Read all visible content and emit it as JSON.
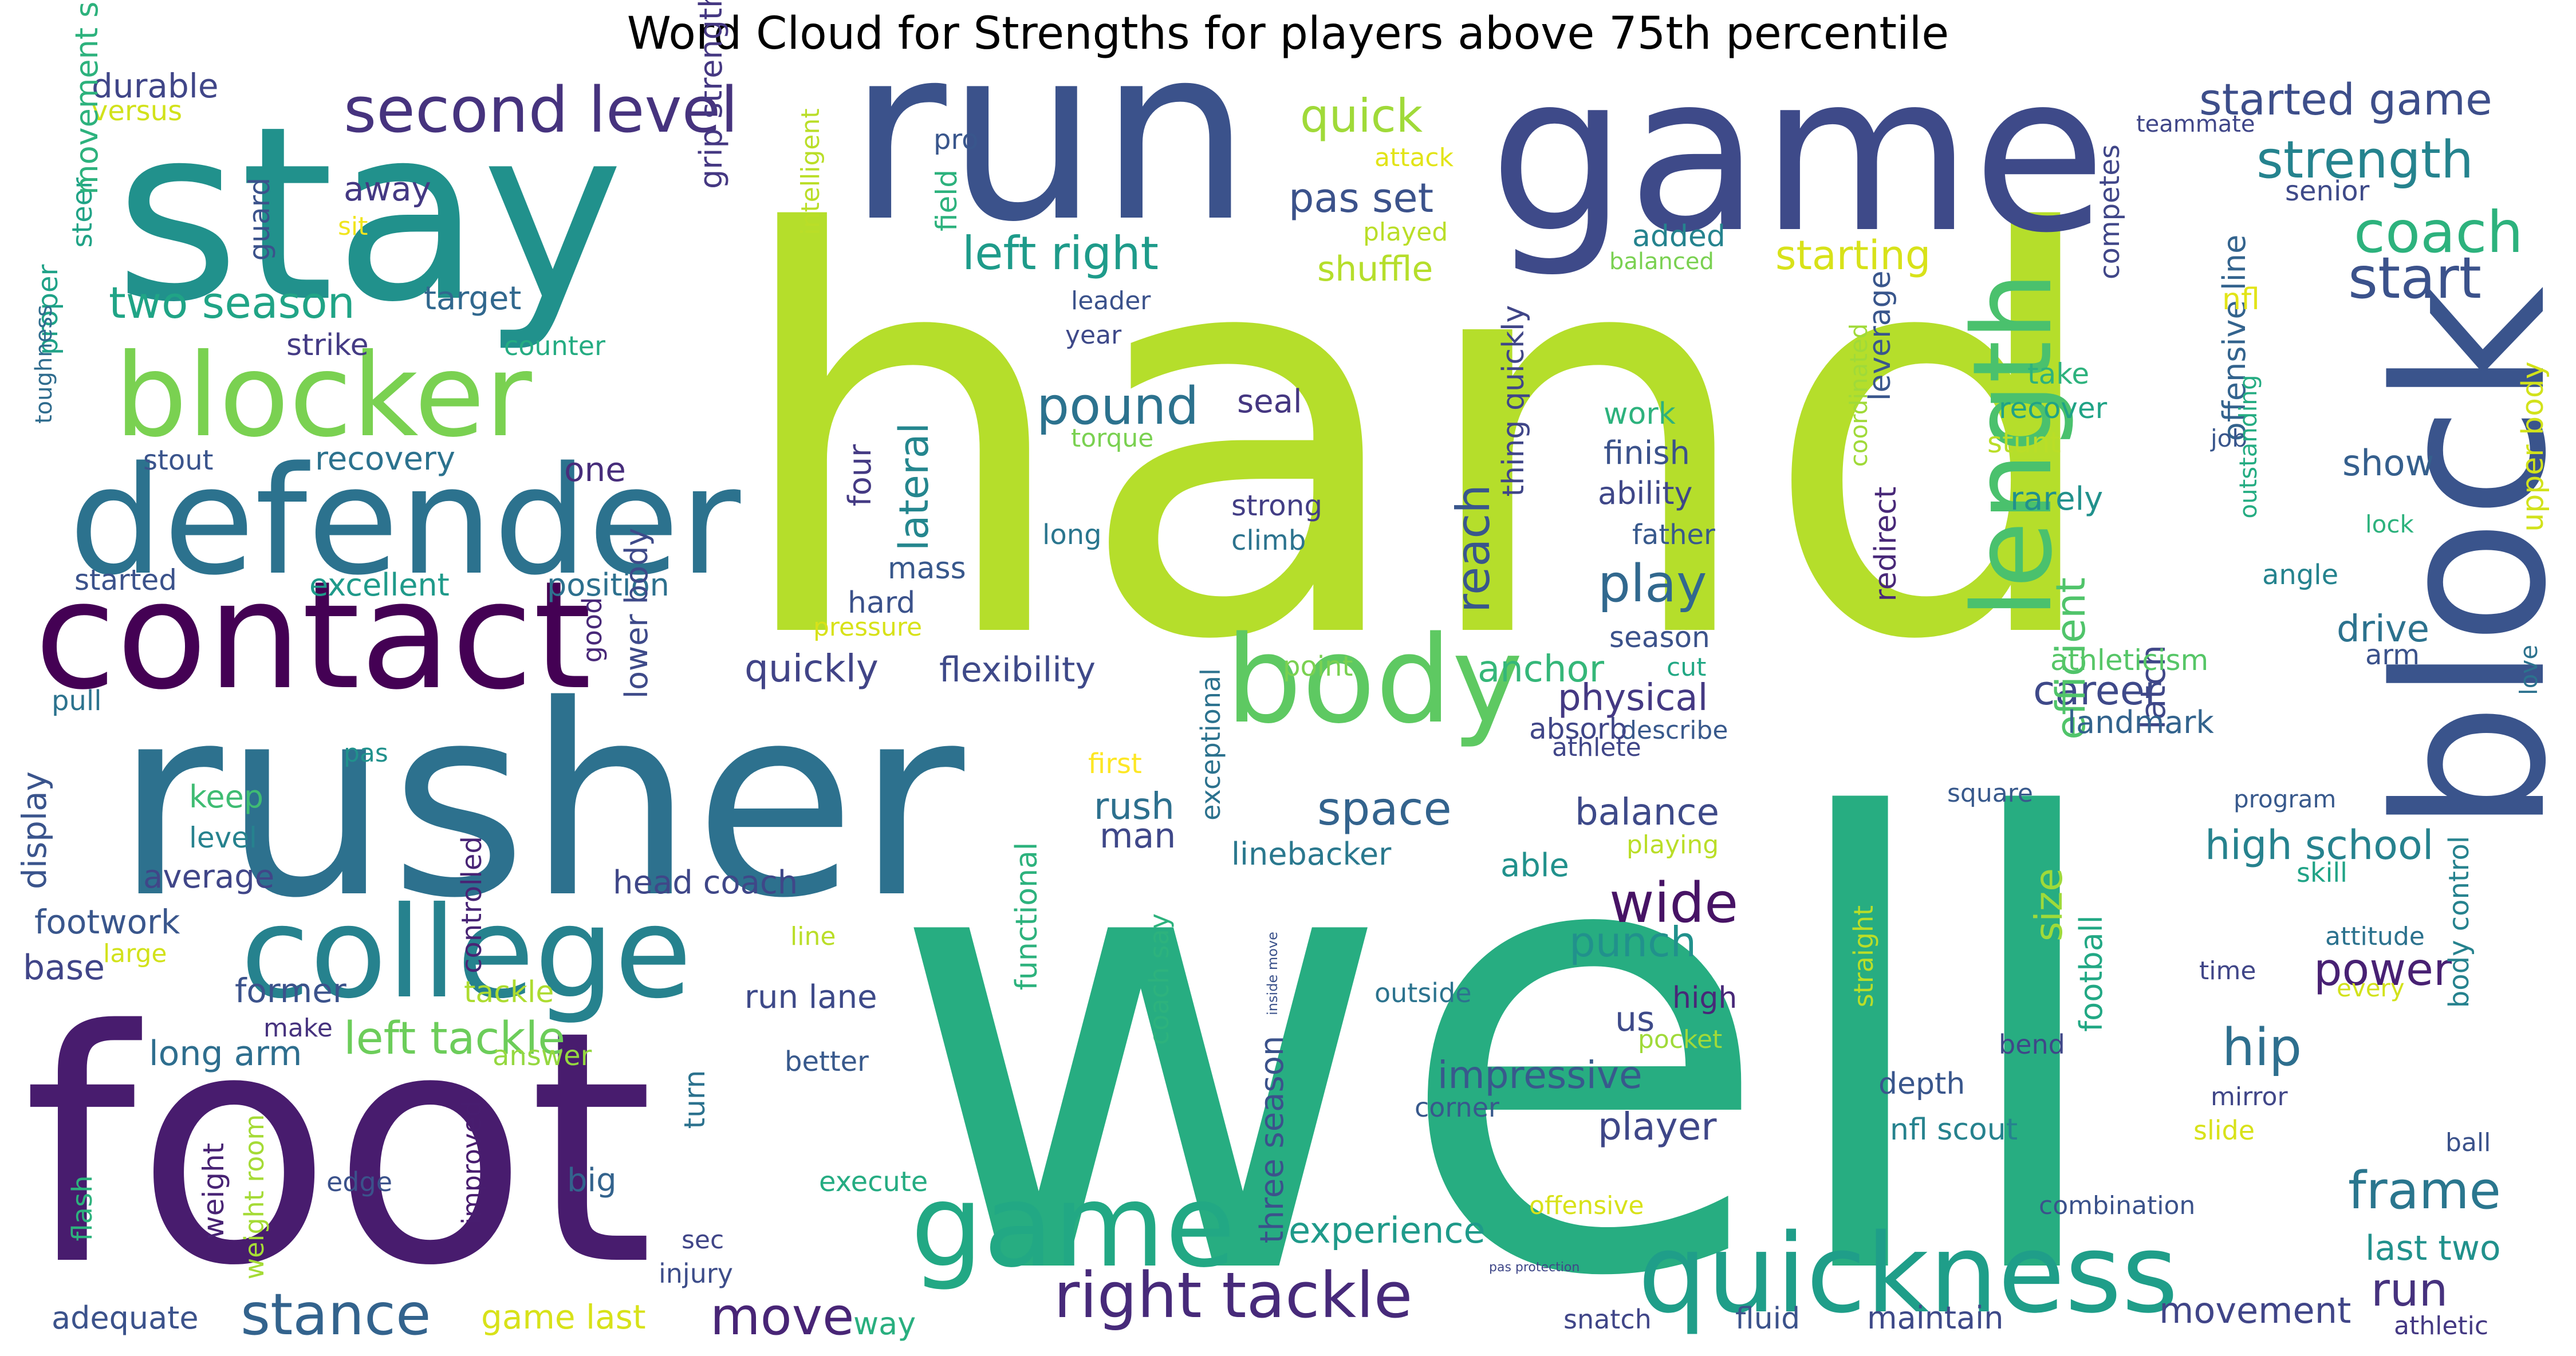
{
  "title": "Word Cloud for Strengths for players above 75th percentile",
  "words": [
    {
      "text": "hand",
      "color": "#b5de2b"
    },
    {
      "text": "well",
      "color": "#27ad81"
    },
    {
      "text": "foot",
      "color": "#481c6e"
    },
    {
      "text": "rusher",
      "color": "#2d718e"
    },
    {
      "text": "run",
      "color": "#3b528b"
    },
    {
      "text": "game",
      "color": "#3e4a89"
    },
    {
      "text": "stay",
      "color": "#21918c"
    },
    {
      "text": "block",
      "color": "#3a548c"
    },
    {
      "text": "defender",
      "color": "#2c728e"
    },
    {
      "text": "contact",
      "color": "#440154"
    },
    {
      "text": "college",
      "color": "#26828e"
    },
    {
      "text": "blocker",
      "color": "#7ad151"
    },
    {
      "text": "quickness",
      "color": "#1f9e89"
    },
    {
      "text": "body",
      "color": "#5ec962"
    },
    {
      "text": "length",
      "color": "#4ac16d"
    },
    {
      "text": "game",
      "color": "#22a884"
    },
    {
      "text": "second level",
      "color": "#46337e"
    },
    {
      "text": "right tackle",
      "color": "#472a7a"
    },
    {
      "text": "left right",
      "color": "#1e9b8a"
    },
    {
      "text": "strength",
      "color": "#25838e"
    },
    {
      "text": "coach",
      "color": "#2db27d"
    },
    {
      "text": "started game",
      "color": "#3d4e8a"
    },
    {
      "text": "stance",
      "color": "#33638d"
    },
    {
      "text": "start",
      "color": "#3b528b"
    },
    {
      "text": "pound",
      "color": "#2c728e"
    },
    {
      "text": "left tackle",
      "color": "#6ccd5a"
    },
    {
      "text": "wide",
      "color": "#471365"
    },
    {
      "text": "frame",
      "color": "#2a768e"
    },
    {
      "text": "quick",
      "color": "#a0da39"
    },
    {
      "text": "two season",
      "color": "#20a486"
    },
    {
      "text": "move",
      "color": "#482576"
    },
    {
      "text": "space",
      "color": "#33638d"
    },
    {
      "text": "hip",
      "color": "#2e6f8e"
    },
    {
      "text": "play",
      "color": "#31688e"
    },
    {
      "text": "reach",
      "color": "#39568c"
    },
    {
      "text": "pas set",
      "color": "#3b528b"
    },
    {
      "text": "shuffle",
      "color": "#b5de2b"
    },
    {
      "text": "starting",
      "color": "#d8e219"
    },
    {
      "text": "high school",
      "color": "#26828e"
    },
    {
      "text": "experience",
      "color": "#1f9a8a"
    },
    {
      "text": "power",
      "color": "#482173"
    },
    {
      "text": "career",
      "color": "#3e4989"
    },
    {
      "text": "anchor",
      "color": "#35b779"
    },
    {
      "text": "balance",
      "color": "#3e4a89"
    },
    {
      "text": "punch",
      "color": "#21918c"
    },
    {
      "text": "quickly",
      "color": "#414487"
    },
    {
      "text": "flexibility",
      "color": "#3e4989"
    },
    {
      "text": "impressive",
      "color": "#38598c"
    },
    {
      "text": "player",
      "color": "#3f4788"
    },
    {
      "text": "lateral",
      "color": "#24868e"
    },
    {
      "text": "latch",
      "color": "#3f4788"
    },
    {
      "text": "size",
      "color": "#9fda3a"
    },
    {
      "text": "run",
      "color": "#46327e"
    },
    {
      "text": "last two",
      "color": "#21918c"
    },
    {
      "text": "movement",
      "color": "#404588"
    },
    {
      "text": "rush",
      "color": "#2d708e"
    },
    {
      "text": "man",
      "color": "#3f4889"
    },
    {
      "text": "physical",
      "color": "#443983"
    },
    {
      "text": "efficient",
      "color": "#50c46a"
    },
    {
      "text": "show",
      "color": "#355f8d"
    },
    {
      "text": "drive",
      "color": "#2c728e"
    },
    {
      "text": "landmark",
      "color": "#33638d"
    },
    {
      "text": "athleticism",
      "color": "#56c667"
    },
    {
      "text": "durable",
      "color": "#404688"
    },
    {
      "text": "versus",
      "color": "#d2e21b"
    },
    {
      "text": "target",
      "color": "#31688e"
    },
    {
      "text": "strike",
      "color": "#443b84"
    },
    {
      "text": "recovery",
      "color": "#2c728e"
    },
    {
      "text": "one",
      "color": "#472d7b"
    },
    {
      "text": "position",
      "color": "#2d708e"
    },
    {
      "text": "excellent",
      "color": "#1f9a8a"
    },
    {
      "text": "started",
      "color": "#3b528b"
    },
    {
      "text": "away",
      "color": "#443983"
    },
    {
      "text": "sit",
      "color": "#f1e51d"
    },
    {
      "text": "guard",
      "color": "#3b528b"
    },
    {
      "text": "steer",
      "color": "#20a386"
    },
    {
      "text": "movement skill",
      "color": "#2db27d"
    },
    {
      "text": "proper",
      "color": "#1fa287"
    },
    {
      "text": "toughness",
      "color": "#2f6c8e"
    },
    {
      "text": "stout",
      "color": "#3a548c"
    },
    {
      "text": "counter",
      "color": "#25ac82"
    },
    {
      "text": "grip strength",
      "color": "#453882"
    },
    {
      "text": "four",
      "color": "#443a83"
    },
    {
      "text": "mass",
      "color": "#38588c"
    },
    {
      "text": "hard",
      "color": "#3b528b"
    },
    {
      "text": "seal",
      "color": "#453781"
    },
    {
      "text": "strong",
      "color": "#433e85"
    },
    {
      "text": "climb",
      "color": "#2c738e"
    },
    {
      "text": "long",
      "color": "#2a768e"
    },
    {
      "text": "torque",
      "color": "#7ad151"
    },
    {
      "text": "pressure",
      "color": "#d8e219"
    },
    {
      "text": "good",
      "color": "#482878"
    },
    {
      "text": "lower body",
      "color": "#3e4a89"
    },
    {
      "text": "controlled",
      "color": "#482475"
    },
    {
      "text": "display",
      "color": "#3a548c"
    },
    {
      "text": "pull",
      "color": "#2c738e"
    },
    {
      "text": "pas",
      "color": "#21918c"
    },
    {
      "text": "keep",
      "color": "#3fbc73"
    },
    {
      "text": "level",
      "color": "#26828e"
    },
    {
      "text": "average",
      "color": "#404688"
    },
    {
      "text": "footwork",
      "color": "#39568c"
    },
    {
      "text": "base",
      "color": "#404588"
    },
    {
      "text": "large",
      "color": "#d2e21b"
    },
    {
      "text": "former",
      "color": "#3b528b"
    },
    {
      "text": "tackle",
      "color": "#addc30"
    },
    {
      "text": "make",
      "color": "#46327e"
    },
    {
      "text": "long arm",
      "color": "#2e6e8e"
    },
    {
      "text": "answer",
      "color": "#95d840"
    },
    {
      "text": "flash",
      "color": "#2db27d"
    },
    {
      "text": "weight",
      "color": "#482374"
    },
    {
      "text": "weight room",
      "color": "#a5db36"
    },
    {
      "text": "edge",
      "color": "#3b528b"
    },
    {
      "text": "improved",
      "color": "#481d6f"
    },
    {
      "text": "big",
      "color": "#33638d"
    },
    {
      "text": "execute",
      "color": "#25ac82"
    },
    {
      "text": "sec",
      "color": "#404688"
    },
    {
      "text": "injury",
      "color": "#3d4d8a"
    },
    {
      "text": "adequate",
      "color": "#3b528b"
    },
    {
      "text": "game last",
      "color": "#d8e219"
    },
    {
      "text": "way",
      "color": "#29af7f"
    },
    {
      "text": "head coach",
      "color": "#3f4788"
    },
    {
      "text": "run lane",
      "color": "#3e4a89"
    },
    {
      "text": "line",
      "color": "#bade28"
    },
    {
      "text": "turn",
      "color": "#2c728e"
    },
    {
      "text": "better",
      "color": "#38598c"
    },
    {
      "text": "intelligent",
      "color": "#bade28"
    },
    {
      "text": "pro",
      "color": "#39568c"
    },
    {
      "text": "field",
      "color": "#2db27d"
    },
    {
      "text": "attack",
      "color": "#e2e418"
    },
    {
      "text": "played",
      "color": "#bade28"
    },
    {
      "text": "leader",
      "color": "#3b528b"
    },
    {
      "text": "year",
      "color": "#3e4989"
    },
    {
      "text": "thing quickly",
      "color": "#404688"
    },
    {
      "text": "point",
      "color": "#7ad151"
    },
    {
      "text": "first",
      "color": "#fde725"
    },
    {
      "text": "functional",
      "color": "#2db27d"
    },
    {
      "text": "exceptional",
      "color": "#2c728e"
    },
    {
      "text": "linebacker",
      "color": "#2a788e"
    },
    {
      "text": "coach say",
      "color": "#2db27d"
    },
    {
      "text": "inside move",
      "color": "#3b528b"
    },
    {
      "text": "three season",
      "color": "#3b528b"
    },
    {
      "text": "outside",
      "color": "#2c738e"
    },
    {
      "text": "corner",
      "color": "#38598c"
    },
    {
      "text": "offensive",
      "color": "#d8e219"
    },
    {
      "text": "pas protection",
      "color": "#3f4788"
    },
    {
      "text": "describe",
      "color": "#38598c"
    },
    {
      "text": "athlete",
      "color": "#404688"
    },
    {
      "text": "cut",
      "color": "#22a884"
    },
    {
      "text": "absorb",
      "color": "#404688"
    },
    {
      "text": "able",
      "color": "#21918c"
    },
    {
      "text": "playing",
      "color": "#bade28"
    },
    {
      "text": "added",
      "color": "#25838e"
    },
    {
      "text": "balanced",
      "color": "#7ad151"
    },
    {
      "text": "work",
      "color": "#2db27d"
    },
    {
      "text": "finish",
      "color": "#3b528b"
    },
    {
      "text": "ability",
      "color": "#3f4788"
    },
    {
      "text": "father",
      "color": "#38598c"
    },
    {
      "text": "season",
      "color": "#3b528b"
    },
    {
      "text": "coordinated",
      "color": "#a0da39"
    },
    {
      "text": "redirect",
      "color": "#482878"
    },
    {
      "text": "leverage",
      "color": "#39568c"
    },
    {
      "text": "competes",
      "color": "#404688"
    },
    {
      "text": "offensive line",
      "color": "#33638d"
    },
    {
      "text": "take",
      "color": "#2db27d"
    },
    {
      "text": "recover",
      "color": "#20a386"
    },
    {
      "text": "stunt",
      "color": "#bade28"
    },
    {
      "text": "rarely",
      "color": "#21918c"
    },
    {
      "text": "us",
      "color": "#3e4a89"
    },
    {
      "text": "high",
      "color": "#482878"
    },
    {
      "text": "pocket",
      "color": "#a0da39"
    },
    {
      "text": "depth",
      "color": "#39568c"
    },
    {
      "text": "nfl scout",
      "color": "#26828e"
    },
    {
      "text": "straight",
      "color": "#bade28"
    },
    {
      "text": "football",
      "color": "#22a884"
    },
    {
      "text": "bend",
      "color": "#3f4788"
    },
    {
      "text": "combination",
      "color": "#3b528b"
    },
    {
      "text": "maintain",
      "color": "#3e4a89"
    },
    {
      "text": "fluid",
      "color": "#3b528b"
    },
    {
      "text": "snatch",
      "color": "#404688"
    },
    {
      "text": "square",
      "color": "#38598c"
    },
    {
      "text": "nfl",
      "color": "#e2e418"
    },
    {
      "text": "teammate",
      "color": "#404688"
    },
    {
      "text": "senior",
      "color": "#3e4a89"
    },
    {
      "text": "job",
      "color": "#39568c"
    },
    {
      "text": "outstanding",
      "color": "#25ac82"
    },
    {
      "text": "upper body",
      "color": "#d2e21b"
    },
    {
      "text": "lock",
      "color": "#2db27d"
    },
    {
      "text": "angle",
      "color": "#25838e"
    },
    {
      "text": "arm",
      "color": "#3b528b"
    },
    {
      "text": "love",
      "color": "#2c728e"
    },
    {
      "text": "program",
      "color": "#38598c"
    },
    {
      "text": "skill",
      "color": "#20a386"
    },
    {
      "text": "attitude",
      "color": "#2c728e"
    },
    {
      "text": "every",
      "color": "#d2e21b"
    },
    {
      "text": "time",
      "color": "#404688"
    },
    {
      "text": "body control",
      "color": "#26828e"
    },
    {
      "text": "mirror",
      "color": "#404688"
    },
    {
      "text": "slide",
      "color": "#d8e219"
    },
    {
      "text": "ball",
      "color": "#3b528b"
    },
    {
      "text": "athletic",
      "color": "#443983"
    }
  ]
}
